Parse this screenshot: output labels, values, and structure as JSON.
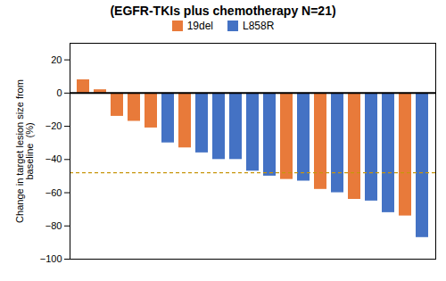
{
  "chart_data": {
    "type": "bar",
    "title": "(EGFR-TKIs plus chemotherapy  N=21)",
    "ylabel": "Change in target lesion size from\nbaseline  (%)",
    "categories": [
      null,
      null,
      null,
      null,
      null,
      null,
      null,
      null,
      null,
      null,
      null,
      null,
      null,
      null,
      null,
      null,
      null,
      null,
      null,
      null,
      null
    ],
    "series": [
      {
        "name": "19del",
        "color": "#E87A3A",
        "values": [
          8,
          2,
          -14,
          -17,
          -21,
          null,
          -33,
          null,
          null,
          null,
          null,
          null,
          -52,
          null,
          -58,
          null,
          -64,
          null,
          null,
          -74,
          null
        ]
      },
      {
        "name": "L858R",
        "color": "#4472C4",
        "values": [
          null,
          null,
          null,
          null,
          null,
          -30,
          null,
          -36,
          -40,
          -40,
          -47,
          -50,
          null,
          -53,
          null,
          -60,
          null,
          -65,
          -72,
          null,
          -87
        ]
      }
    ],
    "reference_line": {
      "value": -48,
      "color": "#C8960C",
      "line_style": "dashed"
    },
    "ylim": [
      -100,
      30
    ],
    "yticks": [
      -100,
      -80,
      -60,
      -40,
      -20,
      0,
      20
    ],
    "grid": false,
    "legend": "top",
    "tick_labels": "y"
  }
}
